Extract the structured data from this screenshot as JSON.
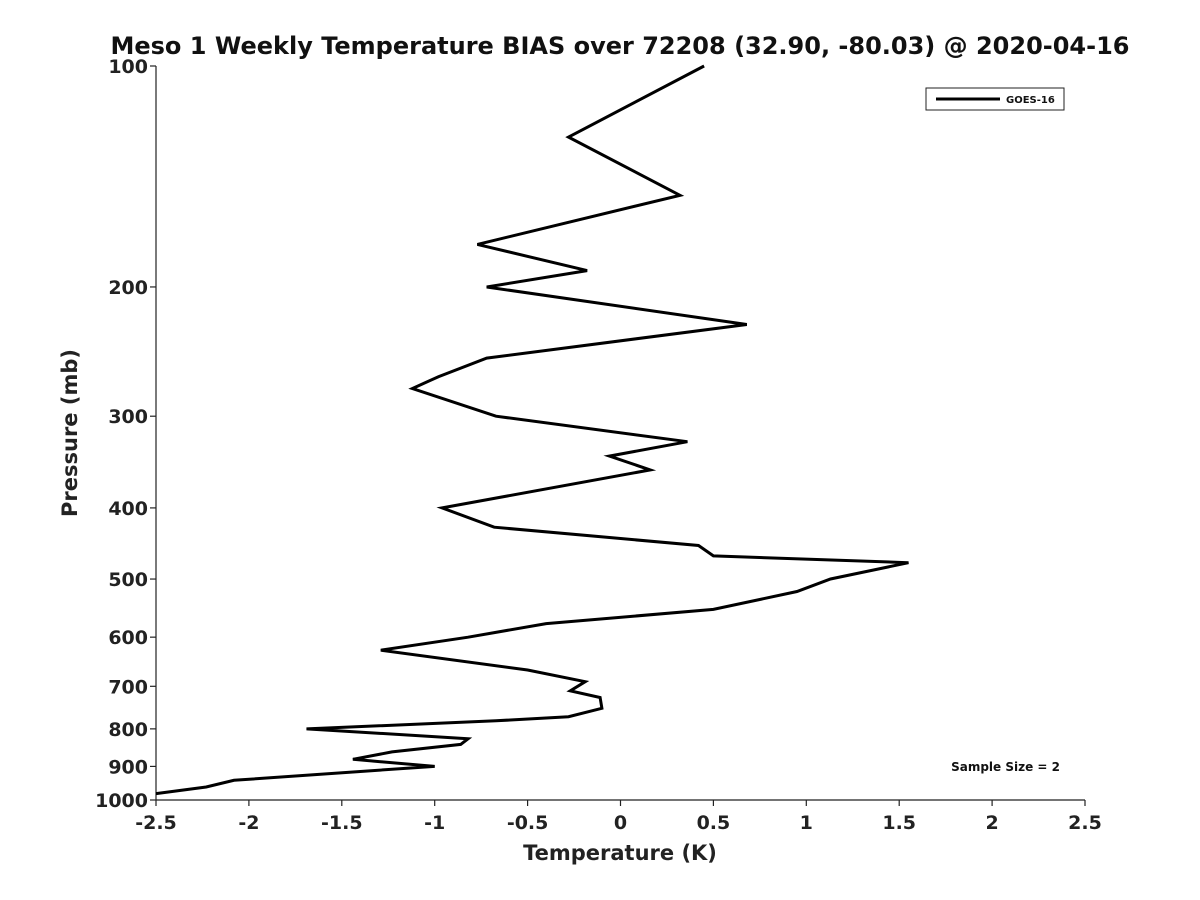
{
  "chart_data": {
    "type": "line",
    "title": "Meso 1 Weekly Temperature BIAS over 72208 (32.90, -80.03) @ 2020-04-16",
    "xlabel": "Temperature (K)",
    "ylabel": "Pressure (mb)",
    "xlim": [
      -2.5,
      2.5
    ],
    "ylim": [
      1000,
      100
    ],
    "yscale": "log",
    "y_reversed": true,
    "grid": false,
    "legend_position": "top-right",
    "x_ticks": [
      -2.5,
      -2,
      -1.5,
      -1,
      -0.5,
      0,
      0.5,
      1,
      1.5,
      2,
      2.5
    ],
    "x_tick_labels": [
      "-2.5",
      "-2",
      "-1.5",
      "-1",
      "-0.5",
      "0",
      "0.5",
      "1",
      "1.5",
      "2",
      "2.5"
    ],
    "y_ticks": [
      100,
      200,
      300,
      400,
      500,
      600,
      700,
      800,
      900,
      1000
    ],
    "y_tick_labels": [
      "100",
      "200",
      "300",
      "400",
      "500",
      "600",
      "700",
      "800",
      "900",
      "1000"
    ],
    "series": [
      {
        "name": "GOES-16",
        "color": "#000000",
        "points": [
          [
            0.45,
            100
          ],
          [
            -0.28,
            125
          ],
          [
            0.32,
            150
          ],
          [
            -0.77,
            175
          ],
          [
            -0.18,
            190
          ],
          [
            -0.72,
            200
          ],
          [
            0.68,
            225
          ],
          [
            -0.72,
            250
          ],
          [
            -0.98,
            265
          ],
          [
            -1.12,
            275
          ],
          [
            -0.67,
            300
          ],
          [
            0.36,
            325
          ],
          [
            -0.06,
            340
          ],
          [
            0.16,
            355
          ],
          [
            -0.96,
            400
          ],
          [
            -0.68,
            425
          ],
          [
            0.42,
            450
          ],
          [
            0.5,
            465
          ],
          [
            1.55,
            475
          ],
          [
            1.13,
            500
          ],
          [
            0.95,
            520
          ],
          [
            0.5,
            550
          ],
          [
            -0.4,
            575
          ],
          [
            -0.82,
            600
          ],
          [
            -1.29,
            625
          ],
          [
            -0.5,
            665
          ],
          [
            -0.19,
            690
          ],
          [
            -0.27,
            710
          ],
          [
            -0.11,
            725
          ],
          [
            -0.1,
            750
          ],
          [
            -0.28,
            770
          ],
          [
            -0.67,
            780
          ],
          [
            -1.69,
            800
          ],
          [
            -0.82,
            825
          ],
          [
            -0.86,
            840
          ],
          [
            -1.23,
            860
          ],
          [
            -1.44,
            880
          ],
          [
            -1.0,
            900
          ],
          [
            -1.42,
            915
          ],
          [
            -2.08,
            940
          ],
          [
            -2.23,
            960
          ],
          [
            -2.5,
            980
          ]
        ]
      }
    ],
    "annotations": [
      "Sample Size = 2"
    ]
  }
}
